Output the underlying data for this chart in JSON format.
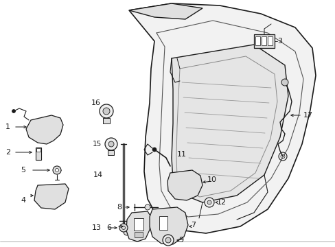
{
  "background_color": "#ffffff",
  "line_color": "#1a1a1a",
  "figsize": [
    4.89,
    3.6
  ],
  "dpi": 100,
  "border_color": "#cccccc",
  "gray_fill": "#d0d0d0",
  "panel_gray": "#c8c8c8"
}
